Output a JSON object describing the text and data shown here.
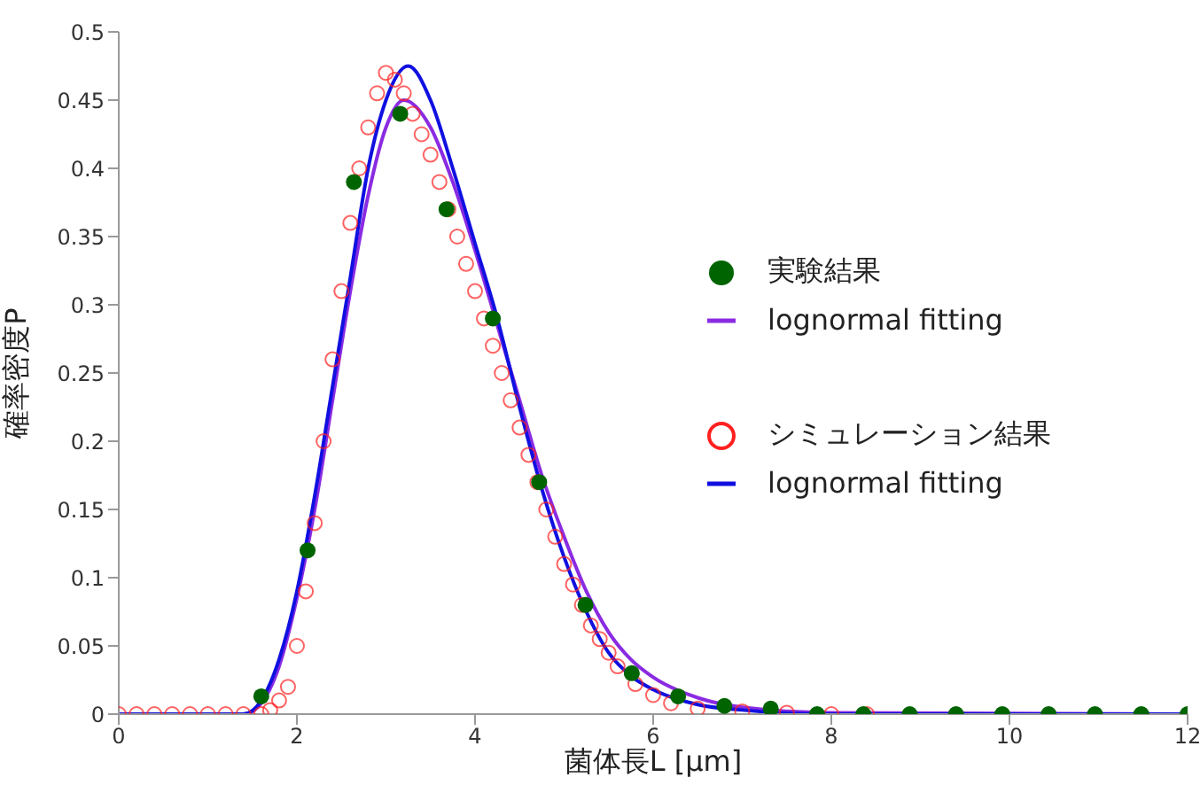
{
  "chart_data": {
    "type": "scatter",
    "xlabel": "菌体長L [μm]",
    "ylabel": "確率密度P",
    "xlim": [
      0,
      12
    ],
    "xticks": [
      0,
      2,
      4,
      6,
      8,
      10,
      12
    ],
    "ylim": [
      0,
      0.5
    ],
    "yticks": [
      0,
      0.05,
      0.1,
      0.15,
      0.2,
      0.25,
      0.3,
      0.35,
      0.4,
      0.45,
      0.5
    ],
    "grid": false,
    "legend": "right",
    "series": [
      {
        "name": "実験結果",
        "marker": "circle",
        "color": "#006400",
        "x": [
          1.6,
          2.12,
          2.64,
          3.16,
          3.68,
          4.2,
          4.72,
          5.24,
          5.76,
          6.28,
          6.8,
          7.32,
          7.84,
          8.36,
          8.88,
          9.4,
          9.92,
          10.44,
          10.96,
          11.48,
          12
        ],
        "values": [
          0.013,
          0.12,
          0.39,
          0.44,
          0.37,
          0.29,
          0.17,
          0.08,
          0.03,
          0.013,
          0.006,
          0.004,
          0,
          0,
          0,
          0,
          0,
          0,
          0,
          0,
          0
        ]
      },
      {
        "name": "lognormal fitting",
        "type": "line",
        "marker": "none",
        "color": "#8a2be2",
        "x": [
          0,
          1.4,
          1.6,
          1.8,
          2.0,
          2.2,
          2.4,
          2.6,
          2.8,
          3.0,
          3.2,
          3.5,
          3.75,
          4.0,
          4.25,
          4.5,
          4.75,
          5.0,
          5.25,
          5.5,
          5.75,
          6.0,
          6.5,
          7.0,
          8.0,
          12
        ],
        "values": [
          0,
          0,
          0.008,
          0.035,
          0.085,
          0.15,
          0.23,
          0.31,
          0.38,
          0.43,
          0.45,
          0.43,
          0.39,
          0.34,
          0.285,
          0.23,
          0.175,
          0.13,
          0.09,
          0.06,
          0.04,
          0.027,
          0.012,
          0.005,
          0.001,
          0
        ]
      },
      {
        "name": "シミュレーション結果",
        "marker": "circle",
        "color": "#ff2020",
        "x": [
          0,
          0.2,
          0.4,
          0.6,
          0.8,
          1.0,
          1.2,
          1.4,
          1.6,
          1.7,
          1.8,
          1.9,
          2.0,
          2.1,
          2.2,
          2.3,
          2.4,
          2.5,
          2.6,
          2.7,
          2.8,
          2.9,
          3.0,
          3.1,
          3.2,
          3.3,
          3.4,
          3.5,
          3.6,
          3.7,
          3.8,
          3.9,
          4.0,
          4.1,
          4.2,
          4.3,
          4.4,
          4.5,
          4.6,
          4.7,
          4.8,
          4.9,
          5.0,
          5.1,
          5.2,
          5.3,
          5.4,
          5.5,
          5.6,
          5.8,
          6.0,
          6.2,
          6.5,
          7.0,
          7.5,
          8.0,
          8.4
        ],
        "values": [
          0,
          0,
          0,
          0,
          0,
          0,
          0,
          0,
          0,
          0.003,
          0.01,
          0.02,
          0.05,
          0.09,
          0.14,
          0.2,
          0.26,
          0.31,
          0.36,
          0.4,
          0.43,
          0.455,
          0.47,
          0.465,
          0.455,
          0.44,
          0.425,
          0.41,
          0.39,
          0.37,
          0.35,
          0.33,
          0.31,
          0.29,
          0.27,
          0.25,
          0.23,
          0.21,
          0.19,
          0.17,
          0.15,
          0.13,
          0.11,
          0.095,
          0.08,
          0.065,
          0.055,
          0.045,
          0.035,
          0.022,
          0.014,
          0.008,
          0.004,
          0.002,
          0.001,
          0,
          0
        ]
      },
      {
        "name": "lognormal fitting",
        "type": "line",
        "marker": "none",
        "color": "#1010e0",
        "x": [
          0,
          1.4,
          1.6,
          1.8,
          2.0,
          2.2,
          2.4,
          2.6,
          2.8,
          3.0,
          3.25,
          3.5,
          3.75,
          4.0,
          4.25,
          4.5,
          4.75,
          5.0,
          5.25,
          5.5,
          5.75,
          6.0,
          6.5,
          7.0,
          8.0,
          12
        ],
        "values": [
          0,
          0,
          0.01,
          0.04,
          0.09,
          0.16,
          0.24,
          0.32,
          0.4,
          0.45,
          0.475,
          0.45,
          0.4,
          0.345,
          0.29,
          0.225,
          0.165,
          0.115,
          0.075,
          0.045,
          0.028,
          0.018,
          0.007,
          0.003,
          0,
          0
        ]
      }
    ]
  }
}
